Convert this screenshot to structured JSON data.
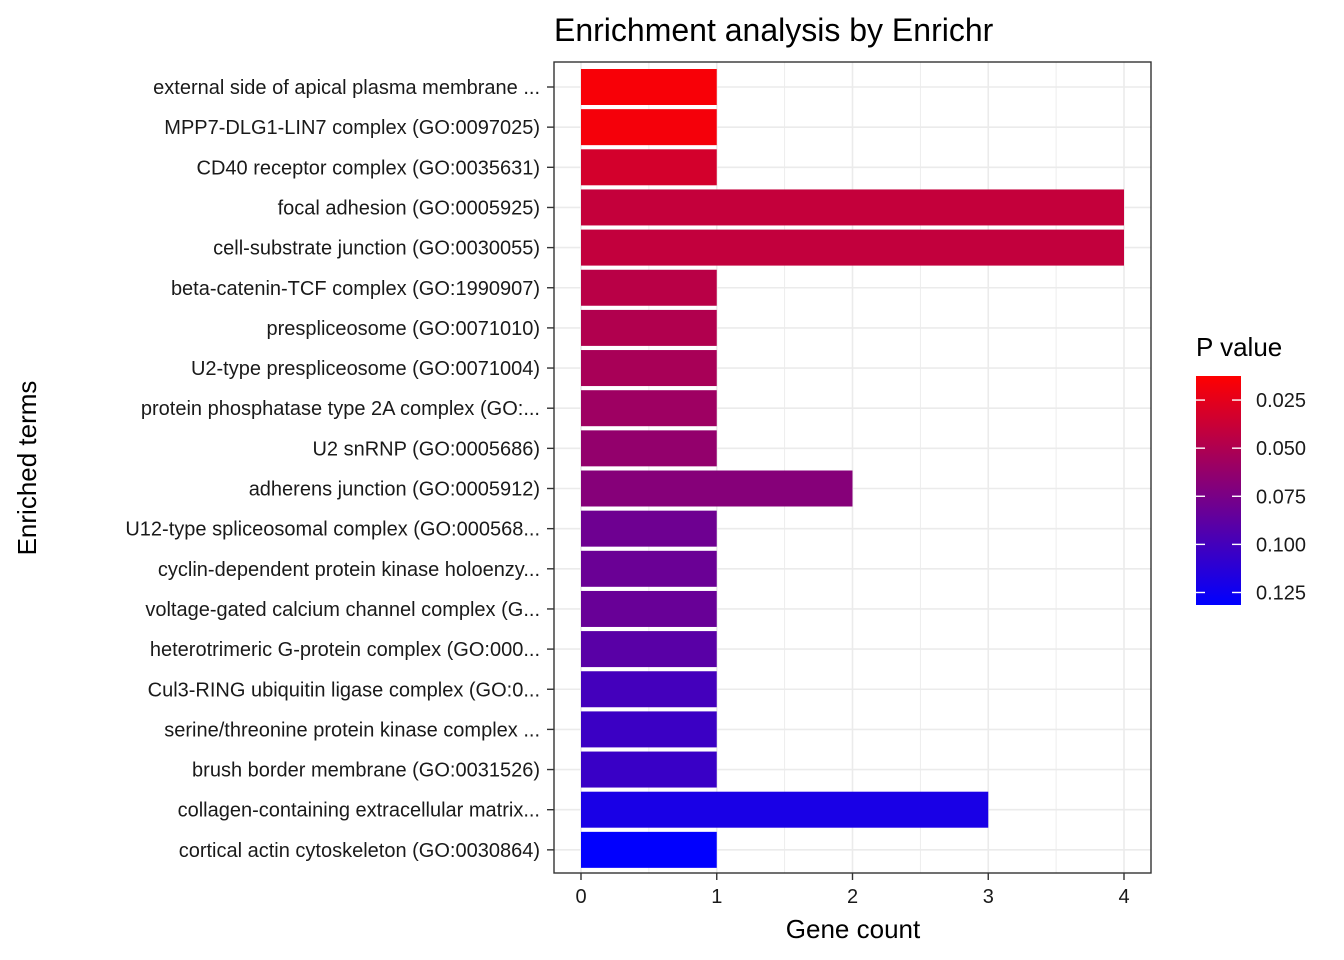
{
  "chart_data": {
    "type": "bar",
    "orientation": "horizontal",
    "title": "Enrichment analysis by Enrichr",
    "xlabel": "Gene count",
    "ylabel": "Enriched terms",
    "xlim": [
      0,
      4
    ],
    "x_ticks": [
      "0",
      "1",
      "2",
      "3",
      "4"
    ],
    "grid": true,
    "categories": [
      "external side of apical plasma membrane ...",
      "MPP7-DLG1-LIN7 complex (GO:0097025)",
      "CD40 receptor complex (GO:0035631)",
      "focal adhesion (GO:0005925)",
      "cell-substrate junction (GO:0030055)",
      "beta-catenin-TCF complex (GO:1990907)",
      "prespliceosome (GO:0071010)",
      "U2-type prespliceosome (GO:0071004)",
      "protein phosphatase type 2A complex (GO:...",
      "U2 snRNP (GO:0005686)",
      "adherens junction (GO:0005912)",
      "U12-type spliceosomal complex (GO:000568...",
      "cyclin-dependent protein kinase holoenzy...",
      "voltage-gated calcium channel complex (G...",
      "heterotrimeric G-protein complex (GO:000...",
      "Cul3-RING ubiquitin ligase complex (GO:0...",
      "serine/threonine protein kinase complex ...",
      "brush border membrane (GO:0031526)",
      "collagen-containing extracellular matrix...",
      "cortical actin cytoskeleton (GO:0030864)"
    ],
    "values": [
      1,
      1,
      1,
      4,
      4,
      1,
      1,
      1,
      1,
      1,
      2,
      1,
      1,
      1,
      1,
      1,
      1,
      1,
      3,
      1
    ],
    "p_values": [
      0.016,
      0.017,
      0.033,
      0.04,
      0.041,
      0.045,
      0.049,
      0.053,
      0.058,
      0.063,
      0.069,
      0.08,
      0.082,
      0.083,
      0.09,
      0.1,
      0.104,
      0.105,
      0.12,
      0.131
    ],
    "legend": {
      "title": "P value",
      "placement": "right",
      "ticks": [
        0.025,
        0.05,
        0.075,
        0.1,
        0.125
      ],
      "tick_labels": [
        "0.025",
        "0.050",
        "0.075",
        "0.100",
        "0.125"
      ],
      "range": [
        0.0125,
        0.1315
      ],
      "low_color": "#FF0000",
      "high_color": "#0000FF"
    }
  }
}
